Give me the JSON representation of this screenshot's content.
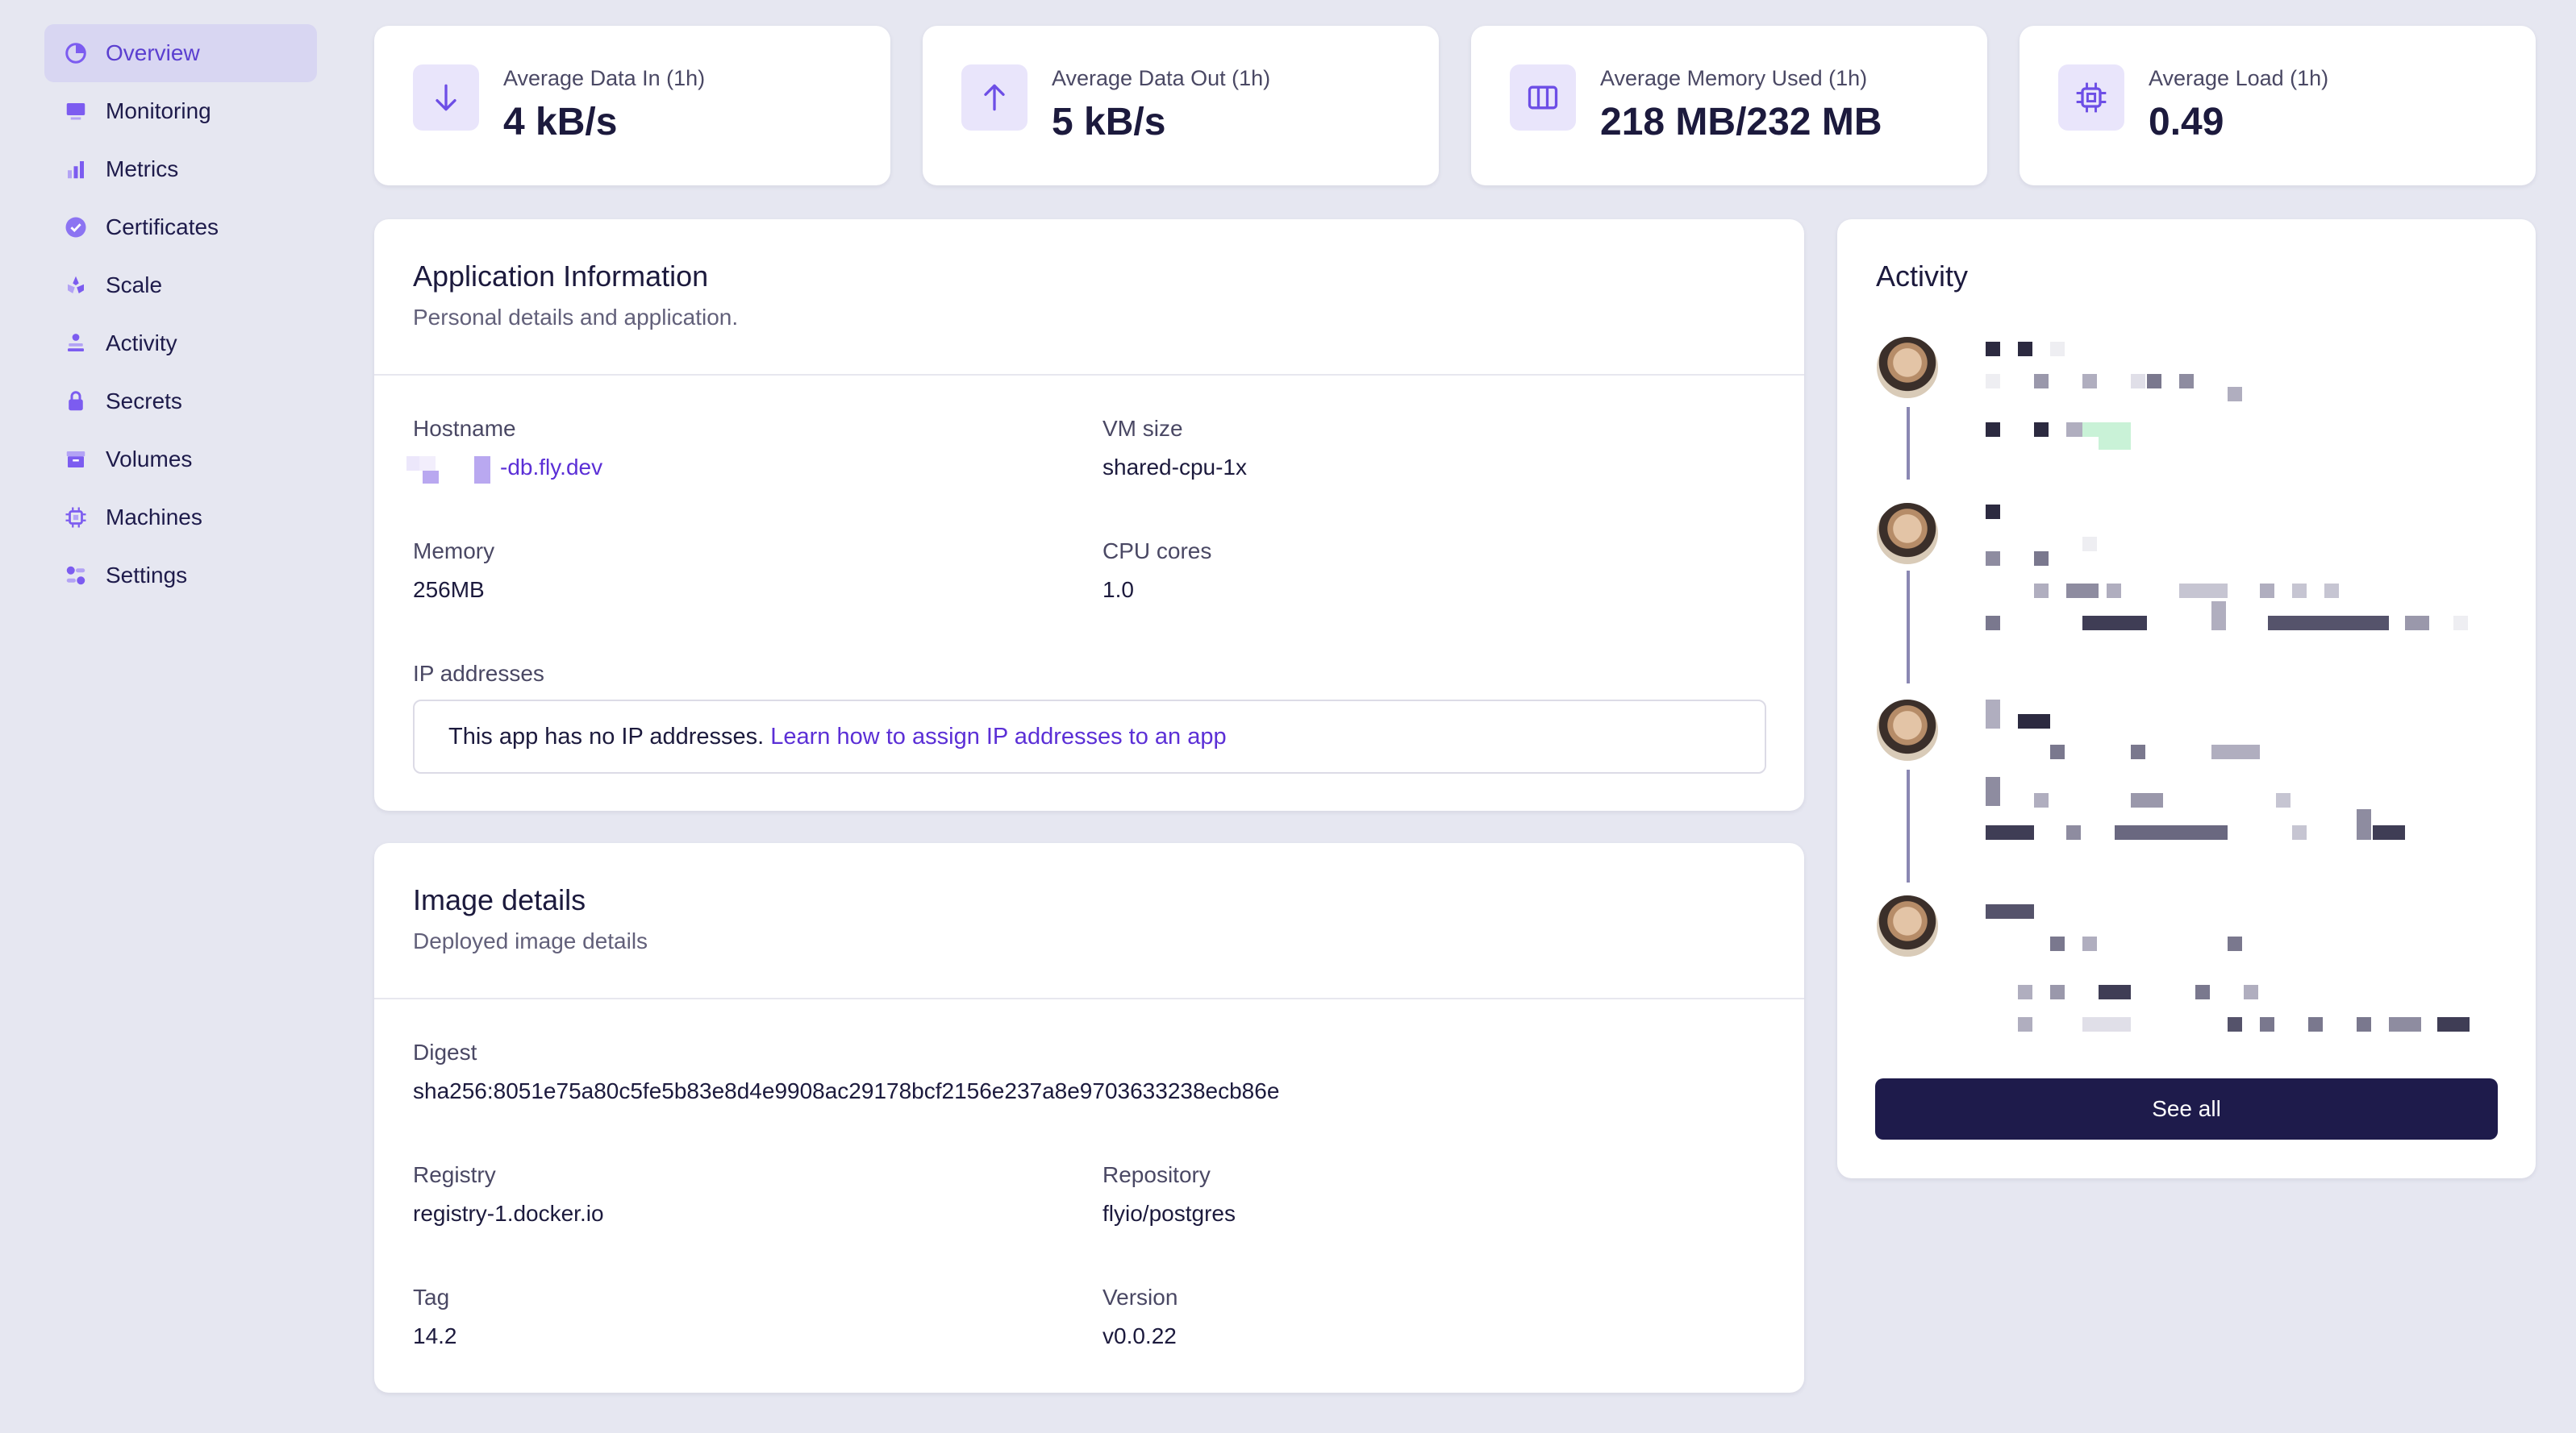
{
  "sidebar": {
    "items": [
      {
        "label": "Overview",
        "icon": "chart-pie-icon",
        "active": true
      },
      {
        "label": "Monitoring",
        "icon": "monitor-icon",
        "active": false
      },
      {
        "label": "Metrics",
        "icon": "bar-chart-icon",
        "active": false
      },
      {
        "label": "Certificates",
        "icon": "badge-check-icon",
        "active": false
      },
      {
        "label": "Scale",
        "icon": "scale-icon",
        "active": false
      },
      {
        "label": "Activity",
        "icon": "activity-icon",
        "active": false
      },
      {
        "label": "Secrets",
        "icon": "lock-icon",
        "active": false
      },
      {
        "label": "Volumes",
        "icon": "archive-icon",
        "active": false
      },
      {
        "label": "Machines",
        "icon": "chip-icon",
        "active": false
      },
      {
        "label": "Settings",
        "icon": "toggle-icon",
        "active": false
      }
    ]
  },
  "stats": [
    {
      "label": "Average Data In (1h)",
      "value": "4 kB/s",
      "icon": "arrow-down-icon"
    },
    {
      "label": "Average Data Out (1h)",
      "value": "5 kB/s",
      "icon": "arrow-up-icon"
    },
    {
      "label": "Average Memory Used (1h)",
      "value": "218 MB/232 MB",
      "icon": "memory-icon"
    },
    {
      "label": "Average Load (1h)",
      "value": "0.49",
      "icon": "cpu-icon"
    }
  ],
  "app_info": {
    "title": "Application Information",
    "subtitle": "Personal details and application.",
    "hostname_label": "Hostname",
    "hostname_value": "-db.fly.dev",
    "vm_size_label": "VM size",
    "vm_size_value": "shared-cpu-1x",
    "memory_label": "Memory",
    "memory_value": "256MB",
    "cpu_label": "CPU cores",
    "cpu_value": "1.0",
    "ip_label": "IP addresses",
    "ip_text": "This app has no IP addresses.",
    "ip_link": "Learn how to assign IP addresses to an app"
  },
  "image_details": {
    "title": "Image details",
    "subtitle": "Deployed image details",
    "digest_label": "Digest",
    "digest_value": "sha256:8051e75a80c5fe5b83e8d4e9908ac29178bcf2156e237a8e9703633238ecb86e",
    "registry_label": "Registry",
    "registry_value": "registry-1.docker.io",
    "repository_label": "Repository",
    "repository_value": "flyio/postgres",
    "tag_label": "Tag",
    "tag_value": "14.2",
    "version_label": "Version",
    "version_value": "v0.0.22"
  },
  "activity": {
    "title": "Activity",
    "see_all": "See all"
  },
  "colors": {
    "accent": "#5b3fd0",
    "button": "#1e1b4b",
    "background": "#e6e7f1"
  }
}
